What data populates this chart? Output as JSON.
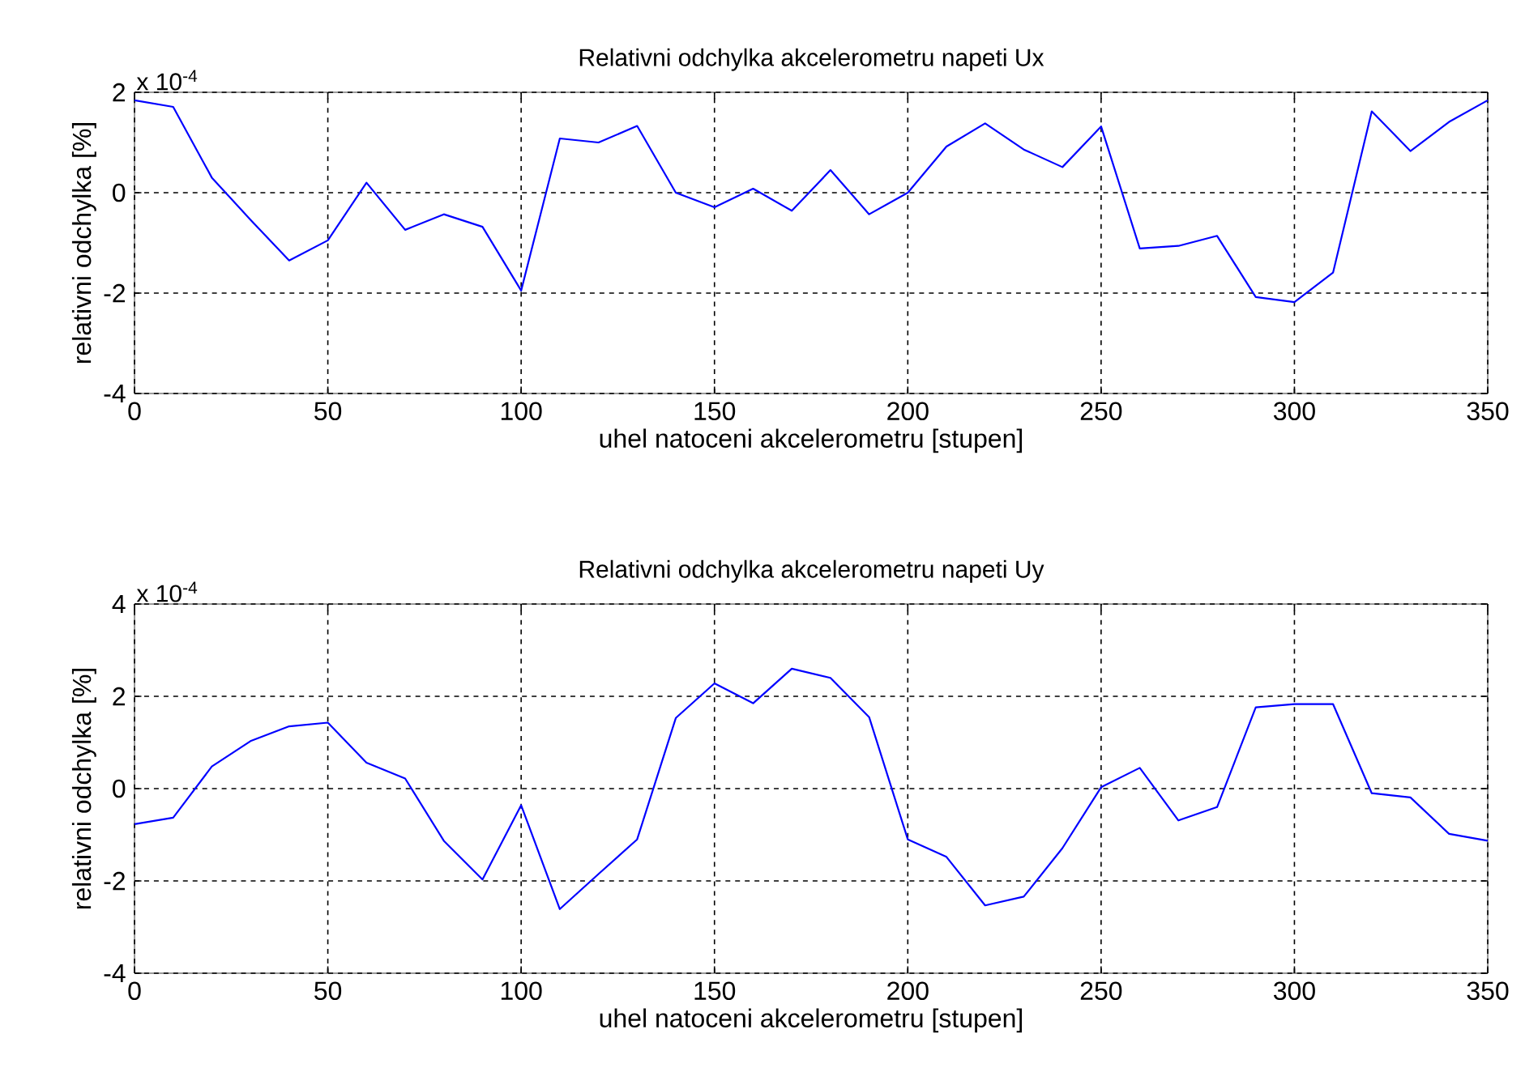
{
  "chart_data": [
    {
      "type": "line",
      "title": "Relativni odchylka akcelerometru  napeti Ux",
      "xlabel": "uhel natoceni akcelerometru [stupen]",
      "ylabel": "relativni odchylka [%]",
      "annotations": [
        "x 10$^{-4}$"
      ],
      "x": [
        0,
        10,
        20,
        30,
        40,
        50,
        60,
        70,
        80,
        90,
        100,
        110,
        120,
        130,
        140,
        150,
        160,
        170,
        180,
        190,
        200,
        210,
        220,
        230,
        240,
        250,
        260,
        270,
        280,
        290,
        300,
        310,
        320,
        330,
        340,
        350
      ],
      "series": [
        {
          "color": "#0000ff",
          "values": [
            1.84,
            1.71,
            0.3,
            -0.54,
            -1.35,
            -0.95,
            0.2,
            -0.74,
            -0.43,
            -0.68,
            -1.95,
            1.08,
            1.0,
            1.33,
            0.0,
            -0.29,
            0.08,
            -0.36,
            0.45,
            -0.43,
            0.0,
            0.92,
            1.38,
            0.86,
            0.51,
            1.32,
            -1.11,
            -1.06,
            -0.86,
            -2.08,
            -2.18,
            -1.59,
            1.62,
            0.83,
            1.41,
            1.84
          ]
        }
      ],
      "xlim": [
        0,
        350
      ],
      "ylim": [
        -4,
        2
      ],
      "xticks": [
        0,
        50,
        100,
        150,
        200,
        250,
        300,
        350
      ],
      "yticks": [
        -4,
        -2,
        0,
        2
      ],
      "grid": true
    },
    {
      "type": "line",
      "title": "Relativni odchylka akcelerometru  napeti Uy",
      "xlabel": "uhel natoceni akcelerometru [stupen]",
      "ylabel": "relativni odchylka [%]",
      "annotations": [
        "x 10$^{-4}$"
      ],
      "x": [
        0,
        10,
        20,
        30,
        40,
        50,
        60,
        70,
        80,
        90,
        100,
        110,
        120,
        130,
        140,
        150,
        160,
        170,
        180,
        190,
        200,
        210,
        220,
        230,
        240,
        250,
        260,
        270,
        280,
        290,
        300,
        310,
        320,
        330,
        340,
        350
      ],
      "series": [
        {
          "color": "#0000ff",
          "values": [
            -0.77,
            -0.63,
            0.48,
            1.03,
            1.35,
            1.43,
            0.56,
            0.22,
            -1.13,
            -1.97,
            -0.36,
            -2.61,
            -1.85,
            -1.1,
            1.53,
            2.28,
            1.85,
            2.6,
            2.4,
            1.55,
            -1.1,
            -1.48,
            -2.53,
            -2.34,
            -1.29,
            0.03,
            0.45,
            -0.69,
            -0.4,
            1.76,
            1.83,
            1.83,
            -0.1,
            -0.19,
            -0.98,
            -1.13
          ]
        }
      ],
      "xlim": [
        0,
        350
      ],
      "ylim": [
        -4,
        4
      ],
      "xticks": [
        0,
        50,
        100,
        150,
        200,
        250,
        300,
        350
      ],
      "yticks": [
        -4,
        -2,
        0,
        2,
        4
      ],
      "grid": true
    }
  ]
}
